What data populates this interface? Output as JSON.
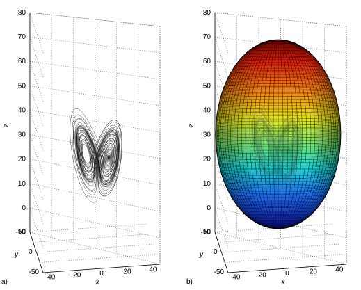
{
  "panels": [
    {
      "label": "a)",
      "xlabel": "x",
      "ylabel": "y",
      "zlabel": "z",
      "xticks": [
        "-40",
        "-20",
        "0",
        "20",
        "40"
      ],
      "yticks": [
        "-50",
        "0",
        "50"
      ],
      "zticks": [
        "-10",
        "0",
        "10",
        "20",
        "30",
        "40",
        "50",
        "60",
        "70",
        "80"
      ]
    },
    {
      "label": "b)",
      "xlabel": "x",
      "ylabel": "y",
      "zlabel": "z",
      "xticks": [
        "-40",
        "-20",
        "0",
        "20",
        "40"
      ],
      "yticks": [
        "-50",
        "0",
        "50"
      ],
      "zticks": [
        "-10",
        "0",
        "10",
        "20",
        "30",
        "40",
        "50",
        "60",
        "70",
        "80"
      ]
    }
  ],
  "chart_data": [
    {
      "type": "line3d",
      "description_of_marks": "Lorenz attractor trajectory (butterfly shape)",
      "series": [
        {
          "x_range": [
            -20,
            20
          ],
          "y_range": [
            -25,
            25
          ],
          "z_range": [
            0,
            48
          ]
        }
      ],
      "xlim": [
        -50,
        40
      ],
      "ylim": [
        -50,
        50
      ],
      "zlim": [
        -10,
        80
      ],
      "xlabel": "x",
      "ylabel": "y",
      "zlabel": "z",
      "grid": true
    },
    {
      "type": "surface3d",
      "series": [
        {
          "shape": "ellipsoid",
          "center": [
            0,
            0,
            30
          ],
          "radii_xy": 40,
          "radius_z": 42,
          "colormap": "jet"
        },
        {
          "shape": "Lorenz attractor trajectory",
          "x_range": [
            -20,
            20
          ],
          "z_range": [
            0,
            48
          ]
        }
      ],
      "xlim": [
        -50,
        40
      ],
      "ylim": [
        -50,
        50
      ],
      "zlim": [
        -10,
        80
      ],
      "xlabel": "x",
      "ylabel": "y",
      "zlabel": "z",
      "grid": true
    }
  ]
}
